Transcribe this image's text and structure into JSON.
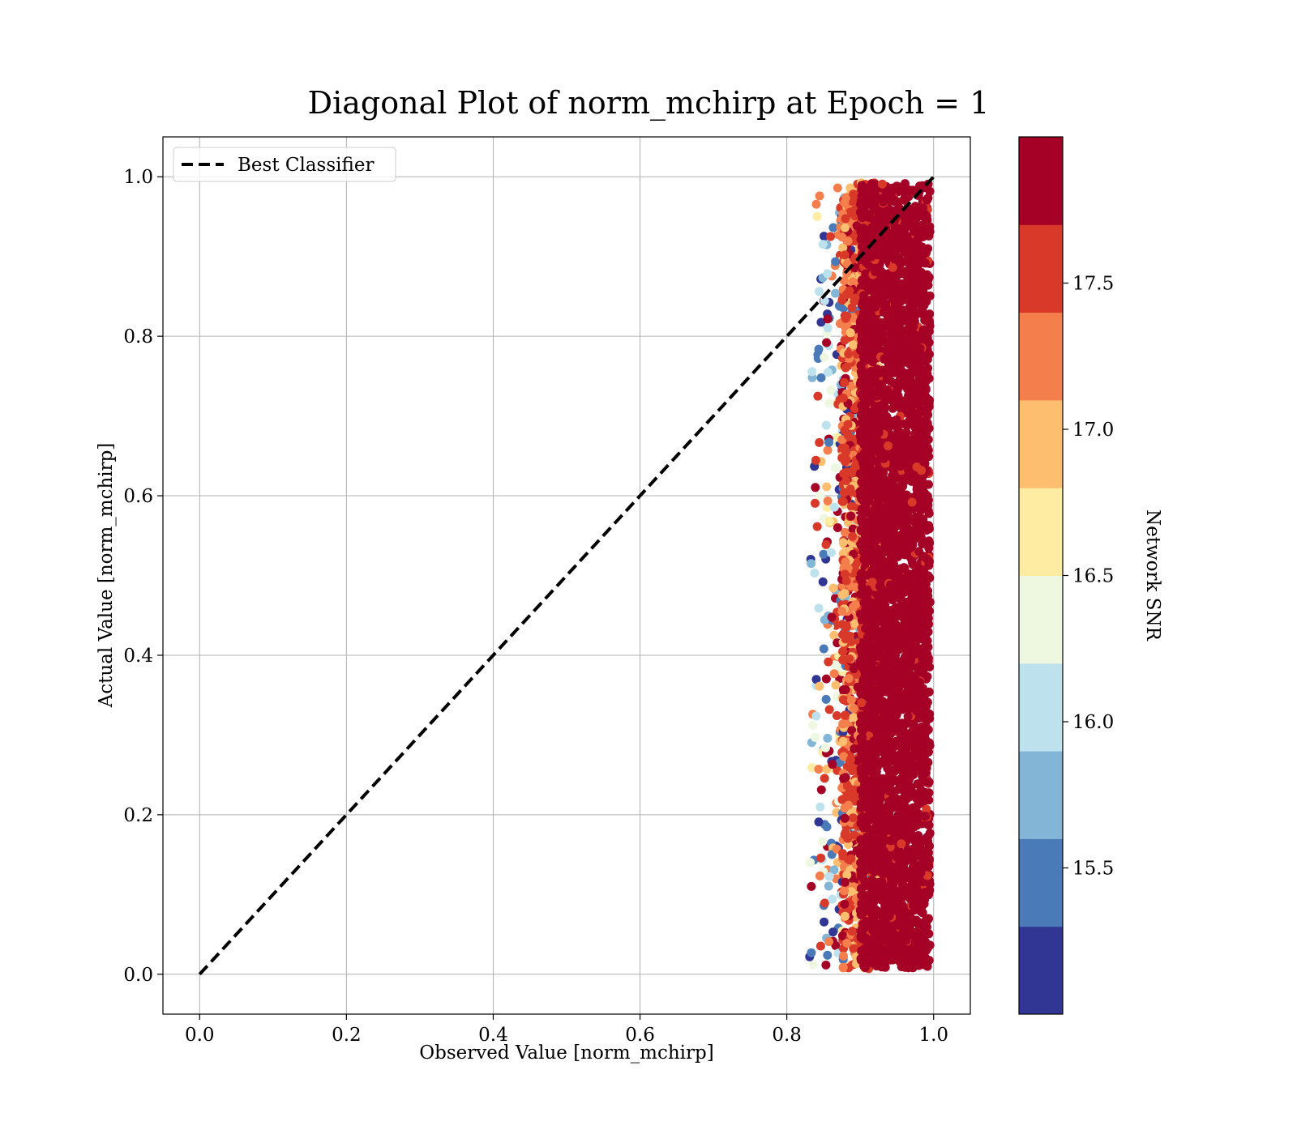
{
  "chart_data": {
    "type": "scatter",
    "title": "Diagonal Plot of norm_mchirp at Epoch = 1",
    "xlabel": "Observed Value [norm_mchirp]",
    "ylabel": "Actual Value [norm_mchirp]",
    "xlim": [
      -0.05,
      1.05
    ],
    "ylim": [
      -0.05,
      1.05
    ],
    "xticks": [
      "0.0",
      "0.2",
      "0.4",
      "0.6",
      "0.8",
      "1.0"
    ],
    "yticks": [
      "0.0",
      "0.2",
      "0.4",
      "0.6",
      "0.8",
      "1.0"
    ],
    "grid": true,
    "legend": {
      "position": "top-left",
      "entries": [
        {
          "name": "Best Classifier",
          "style": "dashed",
          "color": "#000000"
        }
      ]
    },
    "reference_line": {
      "name": "Best Classifier",
      "x": [
        0.0,
        1.0
      ],
      "y": [
        0.0,
        1.0
      ],
      "style": "dashed",
      "color": "#000000"
    },
    "scatter_summary": {
      "observed_range": [
        0.83,
        0.995
      ],
      "observed_dense_core": [
        0.9,
        0.995
      ],
      "actual_range": [
        0.0,
        1.0
      ],
      "dominant_color": "#a50026"
    },
    "colorbar": {
      "label": "Network SNR",
      "ticks": [
        "15.5",
        "16.0",
        "16.5",
        "17.0",
        "17.5"
      ],
      "tick_values": [
        15.5,
        16.0,
        16.5,
        17.0,
        17.5
      ],
      "range": [
        15.0,
        18.0
      ],
      "levels": [
        15.0,
        15.3,
        15.6,
        15.9,
        16.2,
        16.5,
        16.8,
        17.1,
        17.4,
        17.7,
        18.0
      ],
      "colors": [
        "#313695",
        "#4a7ab7",
        "#83b6d6",
        "#bde2ee",
        "#eef8e0",
        "#feeca2",
        "#fdbf6f",
        "#f57e4d",
        "#d93929",
        "#a50026"
      ]
    }
  }
}
